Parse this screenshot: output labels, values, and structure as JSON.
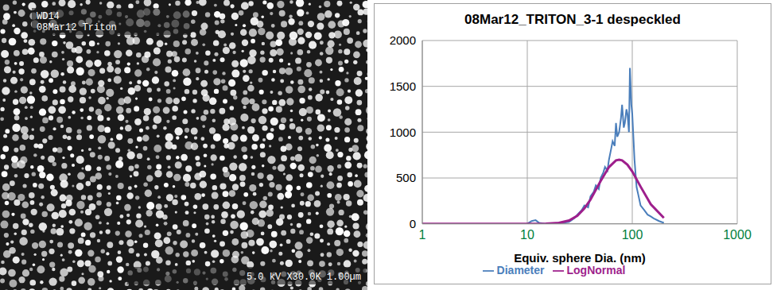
{
  "micrograph": {
    "labels": [
      "WD14",
      "08Mar12 Triton",
      "5.0 kV X30.0K 1.00µm"
    ]
  },
  "chart_data": {
    "type": "line",
    "title": "08Mar12_TRITON_3-1 despeckled",
    "x_label": "Equiv. sphere Dia. (nm)",
    "log": "x",
    "grid": true,
    "legend": "bottom",
    "xlim": [
      1,
      1000
    ],
    "xticks": [
      1,
      10,
      100,
      1000
    ],
    "ylim": [
      0,
      2000
    ],
    "yticks": [
      0,
      500,
      1000,
      1500,
      2000
    ],
    "series": [
      {
        "name": "Diameter",
        "color": "#4a7ebb",
        "x": [
          10,
          11,
          12,
          13,
          15,
          18,
          20,
          23,
          25,
          28,
          30,
          33,
          35,
          38,
          40,
          43,
          45,
          48,
          50,
          53,
          55,
          58,
          60,
          63,
          65,
          68,
          70,
          72,
          75,
          78,
          80,
          83,
          85,
          88,
          90,
          93,
          95,
          98,
          100,
          103,
          105,
          110,
          115,
          120,
          130,
          140,
          150,
          160,
          180,
          200
        ],
        "values": [
          0,
          30,
          40,
          10,
          0,
          5,
          10,
          15,
          20,
          60,
          100,
          150,
          200,
          180,
          300,
          350,
          420,
          380,
          500,
          560,
          620,
          580,
          700,
          820,
          900,
          850,
          1100,
          950,
          1000,
          1150,
          1300,
          1050,
          1100,
          1250,
          1200,
          1000,
          1700,
          1300,
          1200,
          900,
          700,
          400,
          300,
          200,
          150,
          100,
          80,
          60,
          30,
          10
        ]
      },
      {
        "name": "LogNormal",
        "color": "#9e1f8c",
        "x": [
          1,
          5,
          10,
          15,
          20,
          25,
          30,
          35,
          40,
          50,
          60,
          70,
          75,
          80,
          90,
          100,
          120,
          150,
          200
        ],
        "values": [
          0,
          0,
          0,
          1,
          10,
          36,
          88,
          168,
          264,
          467,
          619,
          692,
          700,
          693,
          645,
          571,
          406,
          214,
          65
        ]
      }
    ]
  }
}
